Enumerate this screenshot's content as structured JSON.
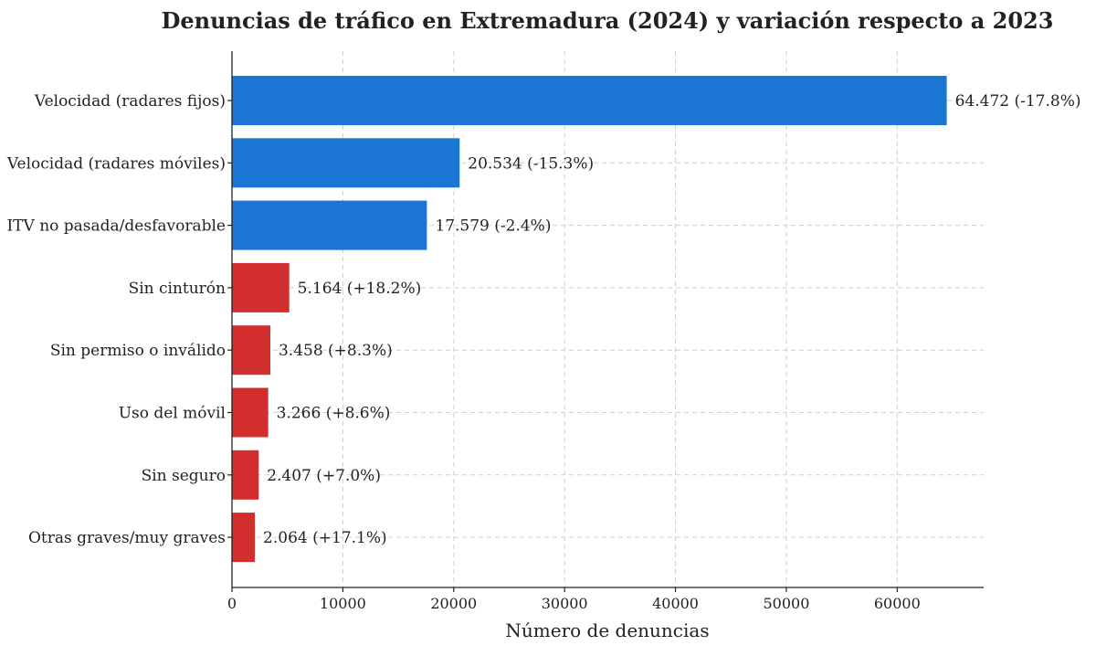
{
  "chart_data": {
    "type": "bar",
    "orientation": "horizontal",
    "title": "Denuncias de tráfico en Extremadura (2024) y variación respecto a 2023",
    "xlabel": "Número de denuncias",
    "ylabel": "",
    "xlim": [
      0,
      67800
    ],
    "xticks": [
      0,
      10000,
      20000,
      30000,
      40000,
      50000,
      60000
    ],
    "xtick_labels": [
      "0",
      "10000",
      "20000",
      "30000",
      "40000",
      "50000",
      "60000"
    ],
    "grid": true,
    "categories": [
      "Velocidad (radares fijos)",
      "Velocidad (radares móviles)",
      "ITV no pasada/desfavorable",
      "Sin cinturón",
      "Sin permiso o inválido",
      "Uso del móvil",
      "Sin seguro",
      "Otras graves/muy graves"
    ],
    "values": [
      64472,
      20534,
      17579,
      5164,
      3458,
      3266,
      2407,
      2064
    ],
    "value_labels": [
      "64.472",
      "20.534",
      "17.579",
      "5.164",
      "3.458",
      "3.266",
      "2.407",
      "2.064"
    ],
    "change_labels": [
      "(-17.8%)",
      "(-15.3%)",
      "(-2.4%)",
      "(+18.2%)",
      "(+8.3%)",
      "(+8.6%)",
      "(+7.0%)",
      "(+17.1%)"
    ],
    "change_pct": [
      -17.8,
      -15.3,
      -2.4,
      18.2,
      8.3,
      8.6,
      7.0,
      17.1
    ],
    "colors": {
      "decrease": "#1b75d3",
      "increase": "#d32e2e"
    }
  }
}
